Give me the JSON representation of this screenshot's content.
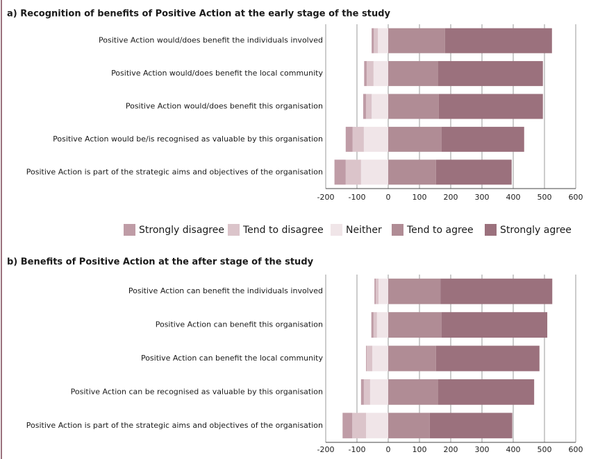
{
  "chart_data": [
    {
      "type": "diverging-bar",
      "title": "a) Recognition of benefits of Positive Action at the early stage of the study",
      "categories": [
        "Positive Action would/does benefit the individuals involved",
        "Positive Action would/does benefit the local community",
        "Positive Action would/does benefit this organisation",
        "Positive Action would be/is recognised as valuable by this organisation",
        "Positive Action is part of the strategic aims and objectives of the organisation"
      ],
      "series": [
        {
          "name": "Strongly disagree",
          "color": "#bf9ca6",
          "side": "negative",
          "values": [
            7,
            8,
            9,
            22,
            36
          ]
        },
        {
          "name": "Tend to disagree",
          "color": "#dbc4ca",
          "side": "negative",
          "values": [
            13,
            22,
            18,
            36,
            49
          ]
        },
        {
          "name": "Neither",
          "color": "#f0e5e8",
          "side": "negative",
          "values": [
            33,
            47,
            53,
            78,
            87
          ]
        },
        {
          "name": "Tend to agree",
          "color": "#b08c95",
          "side": "positive",
          "values": [
            182,
            160,
            162,
            171,
            153
          ]
        },
        {
          "name": "Strongly agree",
          "color": "#9b717d",
          "side": "positive",
          "values": [
            342,
            335,
            333,
            264,
            242
          ]
        }
      ],
      "xlim": [
        -200,
        600
      ],
      "xticks": [
        -200,
        -100,
        0,
        100,
        200,
        300,
        400,
        500,
        600
      ],
      "grid": true
    },
    {
      "type": "diverging-bar",
      "title": "b) Benefits of Positive Action at the after stage of the study",
      "categories": [
        "Positive Action can benefit the individuals involved",
        "Positive Action can benefit this organisation",
        "Positive Action can benefit the local community",
        "Positive Action can be recognised as valuable by this organisation",
        "Positive Action is part of the strategic aims and objectives of the organisation"
      ],
      "series": [
        {
          "color": "#bf9ca6",
          "side": "negative",
          "values": [
            4,
            7,
            2,
            9,
            31
          ]
        },
        {
          "color": "#dbc4ca",
          "side": "negative",
          "values": [
            9,
            11,
            18,
            20,
            44
          ]
        },
        {
          "color": "#f0e5e8",
          "side": "negative",
          "values": [
            31,
            36,
            51,
            58,
            71
          ]
        },
        {
          "color": "#b08c95",
          "side": "positive",
          "values": [
            167,
            171,
            153,
            160,
            133
          ]
        },
        {
          "color": "#9b717d",
          "side": "positive",
          "values": [
            358,
            338,
            331,
            307,
            264
          ]
        }
      ],
      "xlim": [
        -200,
        600
      ],
      "xticks": [
        -200,
        -100,
        0,
        100,
        200,
        300,
        400,
        500,
        600
      ],
      "grid": true
    }
  ]
}
